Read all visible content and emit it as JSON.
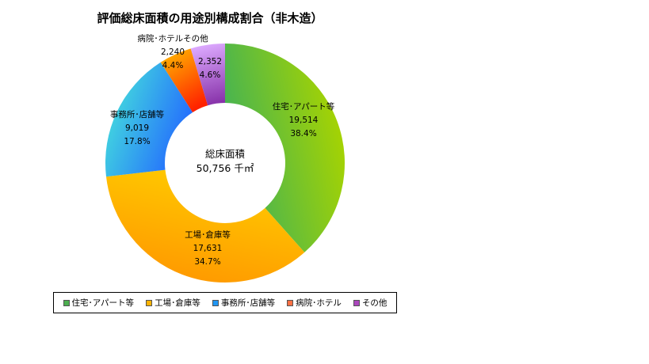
{
  "chart_data": {
    "type": "pie",
    "title": "評価総床面積の用途別構成割合（非木造）",
    "center_label": [
      "総床面積",
      "50,756 千㎡"
    ],
    "slices": [
      {
        "name": "住宅・アパート等",
        "label": "住宅･アパート等",
        "value": 19514,
        "value_text": "19,514",
        "percent": 38.4,
        "percent_text": "38.4%",
        "color": "#3db05a",
        "color2": "#a8d400"
      },
      {
        "name": "工場・倉庫等",
        "label": "工場･倉庫等",
        "value": 17631,
        "value_text": "17,631",
        "percent": 34.7,
        "percent_text": "34.7%",
        "color": "#ffcc00",
        "color2": "#ff9900"
      },
      {
        "name": "事務所・店舗等",
        "label": "事務所･店舗等",
        "value": 9019,
        "value_text": "9,019",
        "percent": 17.8,
        "percent_text": "17.8%",
        "color": "#2266ff",
        "color2": "#44dddd"
      },
      {
        "name": "病院・ホテル",
        "label": "病院･ホテルその他",
        "value": 2240,
        "value_text": "2,240",
        "percent": 4.4,
        "percent_text": "4.4%",
        "color": "#ff2200",
        "color2": "#ffaa00"
      },
      {
        "name": "その他",
        "label": "",
        "value": 2352,
        "value_text": "2,352",
        "percent": 4.6,
        "percent_text": "4.6%",
        "color": "#8833aa",
        "color2": "#ddaaff"
      }
    ],
    "legend": [
      "住宅･アパート等",
      "工場･倉庫等",
      "事務所･店舗等",
      "病院･ホテル",
      "その他"
    ],
    "legend_colors": [
      "#4caf50",
      "#ffb300",
      "#2196f3",
      "#ff7043",
      "#ab47bc"
    ]
  }
}
